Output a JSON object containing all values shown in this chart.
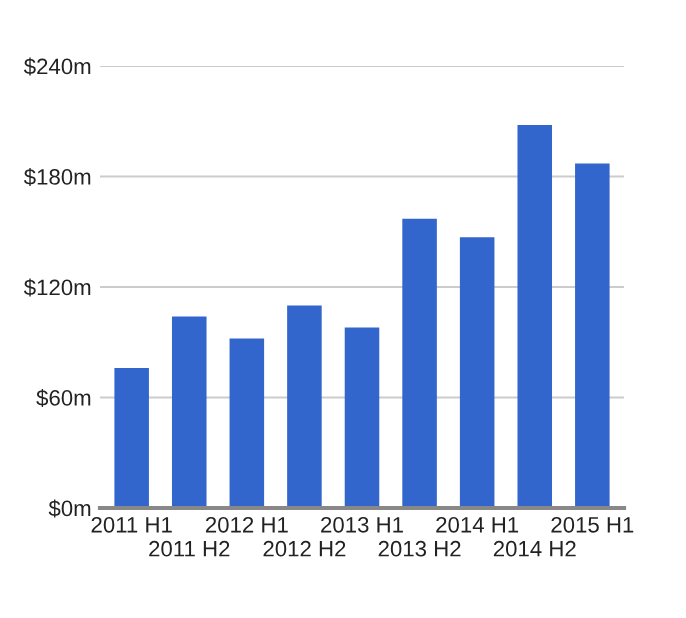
{
  "chart_data": {
    "type": "bar",
    "categories": [
      "2011 H1",
      "2011 H2",
      "2012 H1",
      "2012 H2",
      "2013 H1",
      "2013 H2",
      "2014 H1",
      "2014 H2",
      "2015 H1"
    ],
    "values": [
      76,
      104,
      92,
      110,
      98,
      157,
      147,
      208,
      187
    ],
    "color": "#3366cc",
    "ylim": [
      0,
      240
    ],
    "yticks": [
      {
        "value": 0,
        "label": "$0m"
      },
      {
        "value": 60,
        "label": "$60m"
      },
      {
        "value": 120,
        "label": "$120m"
      },
      {
        "value": 180,
        "label": "$180m"
      },
      {
        "value": 240,
        "label": "$240m"
      }
    ],
    "grid": "y",
    "legend": false
  }
}
